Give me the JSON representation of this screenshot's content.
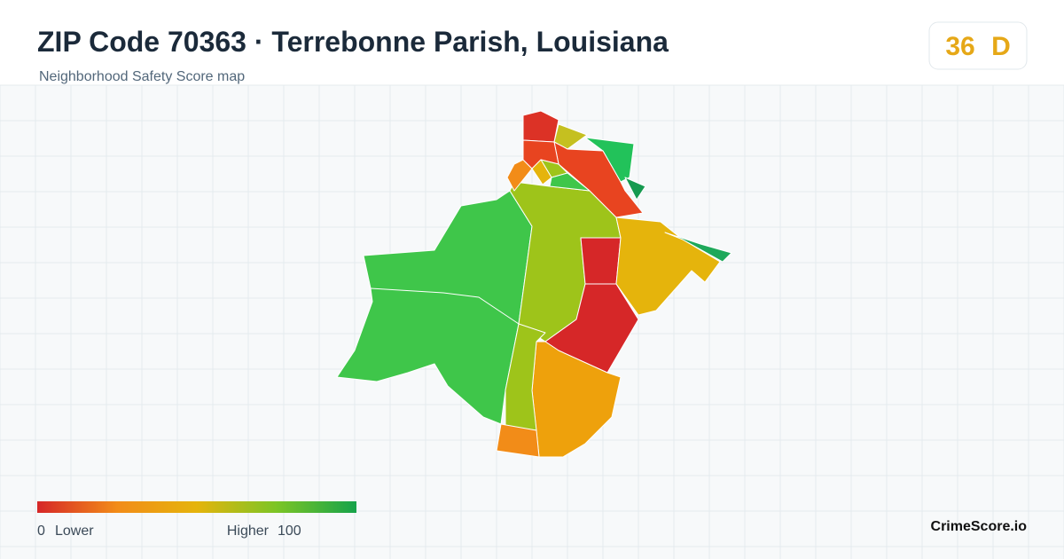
{
  "header": {
    "title": "ZIP Code 70363 · Terrebonne Parish, Louisiana",
    "subtitle": "Neighborhood Safety Score map"
  },
  "badge": {
    "score": "36",
    "grade": "D"
  },
  "legend": {
    "min": "0",
    "min_label": "Lower",
    "max_label": "Higher",
    "max": "100"
  },
  "brand": "CrimeScore.io"
}
